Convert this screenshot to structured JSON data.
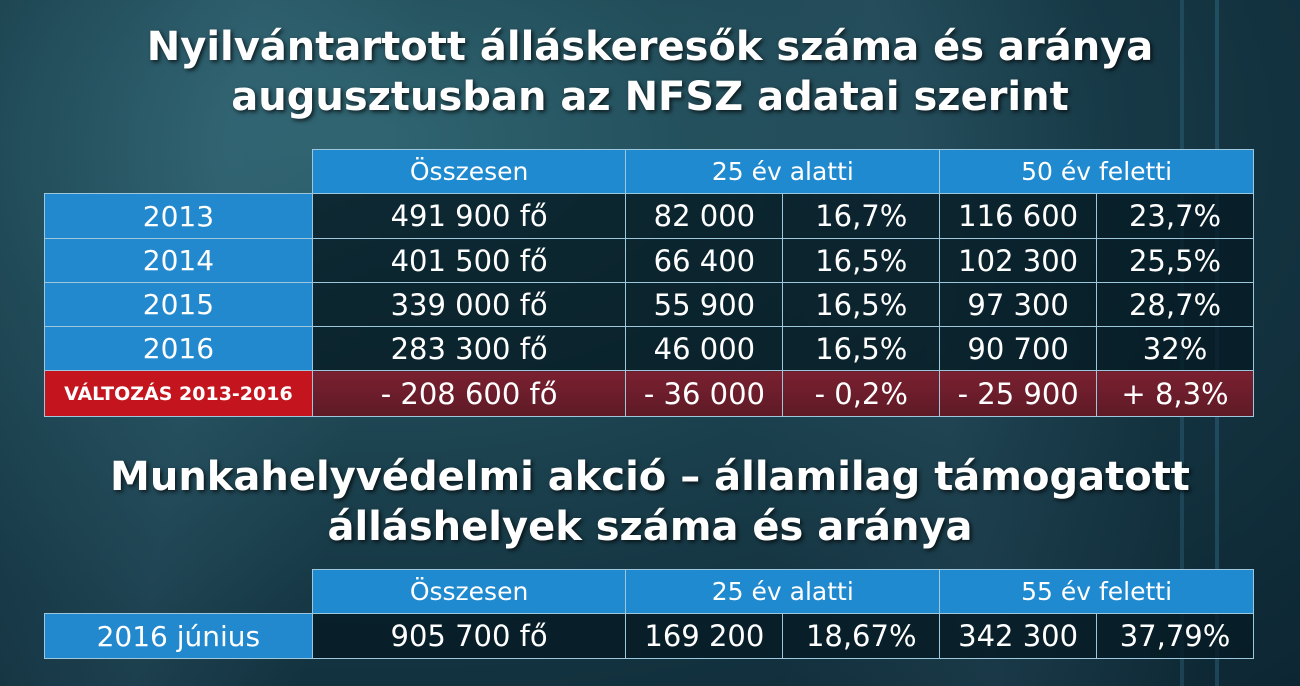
{
  "title1": {
    "line1": "Nyilvántartott álláskeresők száma és aránya",
    "line2": "augusztusban az NFSZ adatai szerint"
  },
  "table1": {
    "headers": [
      "Összesen",
      "25 év alatti",
      "50 év feletti"
    ],
    "rows": [
      {
        "label": "2013",
        "total": "491 900 fő",
        "u25": "82 000",
        "u25pct": "16,7%",
        "o50": "116 600",
        "o50pct": "23,7%"
      },
      {
        "label": "2014",
        "total": "401 500 fő",
        "u25": "66 400",
        "u25pct": "16,5%",
        "o50": "102 300",
        "o50pct": "25,5%"
      },
      {
        "label": "2015",
        "total": "339 000 fő",
        "u25": "55 900",
        "u25pct": "16,5%",
        "o50": "97 300",
        "o50pct": "28,7%"
      },
      {
        "label": "2016",
        "total": "283 300 fő",
        "u25": "46 000",
        "u25pct": "16,5%",
        "o50": "90 700",
        "o50pct": "32%"
      }
    ],
    "change": {
      "label": "VÁLTOZÁS 2013-2016",
      "total": "- 208 600 fő",
      "u25": "- 36 000",
      "u25pct": "- 0,2%",
      "o50": "- 25 900",
      "o50pct": "+ 8,3%"
    }
  },
  "title2": {
    "line1": "Munkahelyvédelmi akció – államilag  támogatott",
    "line2": "álláshelyek száma és aránya"
  },
  "table2": {
    "headers": [
      "Összesen",
      "25 év alatti",
      "55 év feletti"
    ],
    "row": {
      "label": "2016 június",
      "total": "905 700 fő",
      "u25": "169 200",
      "u25pct": "18,67%",
      "o55": "342 300",
      "o55pct": "37,79%"
    }
  },
  "chart_data": [
    {
      "type": "table",
      "title": "Nyilvántartott álláskeresők száma és aránya augusztusban az NFSZ adatai szerint",
      "columns": [
        "",
        "Összesen",
        "25 év alatti",
        "25 év alatti %",
        "50 év feletti",
        "50 év feletti %"
      ],
      "rows": [
        [
          "2013",
          491900,
          82000,
          16.7,
          116600,
          23.7
        ],
        [
          "2014",
          401500,
          66400,
          16.5,
          102300,
          25.5
        ],
        [
          "2015",
          339000,
          55900,
          16.5,
          97300,
          28.7
        ],
        [
          "2016",
          283300,
          46000,
          16.5,
          90700,
          32
        ],
        [
          "VÁLTOZÁS 2013-2016",
          -208600,
          -36000,
          -0.2,
          -25900,
          8.3
        ]
      ]
    },
    {
      "type": "table",
      "title": "Munkahelyvédelmi akció – államilag támogatott álláshelyek száma és aránya",
      "columns": [
        "",
        "Összesen",
        "25 év alatti",
        "25 év alatti %",
        "55 év feletti",
        "55 év feletti %"
      ],
      "rows": [
        [
          "2016 június",
          905700,
          169200,
          18.67,
          342300,
          37.79
        ]
      ]
    }
  ]
}
